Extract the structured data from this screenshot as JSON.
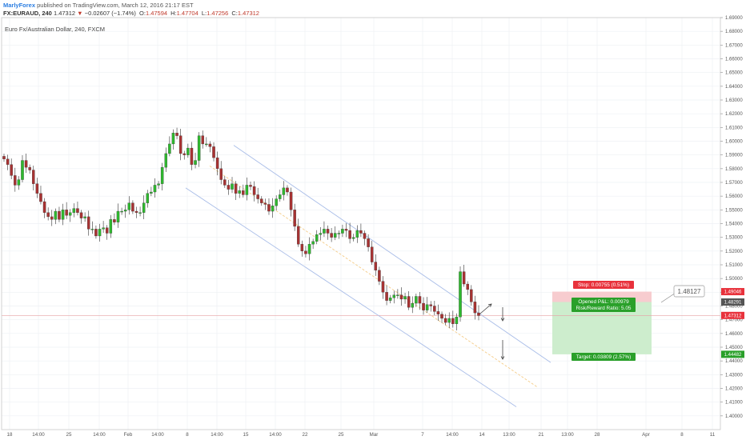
{
  "header": {
    "author": "MarlyForex",
    "published": "published on TradingView.com, March 12, 2016 21:17 EST",
    "ticker": "FX:EURAUD, 240",
    "last": "1.47312",
    "change_arrow": "▼",
    "change": "−0.02607 (−1.74%)",
    "o_label": "O:",
    "o_value": "1.47594",
    "h_label": "H:",
    "h_value": "1.47704",
    "l_label": "L:",
    "l_value": "1.47256",
    "c_label": "C:",
    "c_value": "1.47312",
    "symbol_desc": "Euro Fx/Australian Dollar, 240, FXCM"
  },
  "colors": {
    "up": "#2eb82e",
    "down": "#a83232",
    "channel": "#a9bde8",
    "midline": "#f5cc88",
    "stop_zone": "#f7cccf",
    "target_zone": "#cdedcd",
    "stop_label": "#e8323c",
    "target_label": "#2aa02a",
    "last_price": "#e8323c",
    "grid": "#eef0f4"
  },
  "chart_data": {
    "type": "candlestick",
    "symbol": "FX:EURAUD",
    "interval": "240",
    "ylim": [
      1.39,
      1.69
    ],
    "y_ticks": [
      1.4,
      1.41,
      1.42,
      1.43,
      1.44,
      1.45,
      1.46,
      1.47,
      1.48,
      1.49,
      1.5,
      1.51,
      1.52,
      1.53,
      1.54,
      1.55,
      1.56,
      1.57,
      1.58,
      1.59,
      1.6,
      1.61,
      1.62,
      1.63,
      1.64,
      1.65,
      1.66,
      1.67,
      1.68,
      1.69
    ],
    "x_ticks": [
      "18",
      "14:00",
      "25",
      "14:00",
      "Feb",
      "14:00",
      "8",
      "14:00",
      "15",
      "14:00",
      "22",
      "25",
      "Mar",
      "7",
      "14:00",
      "14",
      "13:00",
      "21",
      "13:00",
      "28",
      "Apr",
      "8",
      "11"
    ],
    "close_path": [
      1.587,
      1.583,
      1.575,
      1.568,
      1.572,
      1.586,
      1.581,
      1.579,
      1.569,
      1.562,
      1.556,
      1.548,
      1.545,
      1.543,
      1.549,
      1.543,
      1.55,
      1.546,
      1.548,
      1.551,
      1.548,
      1.544,
      1.545,
      1.536,
      1.536,
      1.531,
      1.536,
      1.537,
      1.533,
      1.543,
      1.541,
      1.549,
      1.549,
      1.55,
      1.555,
      1.549,
      1.548,
      1.548,
      1.555,
      1.562,
      1.563,
      1.568,
      1.569,
      1.581,
      1.591,
      1.598,
      1.606,
      1.604,
      1.591,
      1.59,
      1.595,
      1.583,
      1.586,
      1.604,
      1.598,
      1.598,
      1.596,
      1.588,
      1.58,
      1.572,
      1.568,
      1.565,
      1.569,
      1.562,
      1.564,
      1.561,
      1.568,
      1.567,
      1.561,
      1.558,
      1.555,
      1.554,
      1.549,
      1.553,
      1.558,
      1.561,
      1.566,
      1.563,
      1.55,
      1.538,
      1.525,
      1.52,
      1.518,
      1.525,
      1.527,
      1.532,
      1.533,
      1.536,
      1.533,
      1.53,
      1.533,
      1.533,
      1.536,
      1.535,
      1.529,
      1.53,
      1.535,
      1.533,
      1.529,
      1.523,
      1.512,
      1.506,
      1.498,
      1.49,
      1.484,
      1.486,
      1.488,
      1.488,
      1.485,
      1.487,
      1.479,
      1.482,
      1.487,
      1.482,
      1.477,
      1.481,
      1.48,
      1.476,
      1.474,
      1.471,
      1.468,
      1.471,
      1.467,
      1.472,
      1.505,
      1.496,
      1.492,
      1.483,
      1.475,
      1.473
    ],
    "trend_channel": {
      "upper": {
        "from": {
          "x": "Feb 10",
          "y": 1.597
        },
        "to": {
          "x": "Mar 15",
          "y": 1.474
        }
      },
      "middle": {
        "from": {
          "x": "Feb 10",
          "y": 1.582
        },
        "to": {
          "x": "Mar 15",
          "y": 1.449
        }
      },
      "lower": {
        "from": {
          "x": "Feb 10",
          "y": 1.566
        },
        "to": {
          "x": "Mar 15",
          "y": 1.424
        }
      }
    },
    "position": {
      "entry": 1.48291,
      "stop": 1.49046,
      "target": 1.44482,
      "last": 1.47312,
      "stop_label": "Stop: 0.00755 (0.51%)",
      "pnl_label": "Opened P&L: 0.00979",
      "rr_label": "Risk/Reward Ratio: 5.05",
      "target_label": "Target: 0.03809 (2.57%)"
    },
    "callout": "1.48127",
    "price_labels": {
      "stop": "1.49046",
      "entry": "1.48291",
      "last": "1.47312",
      "target": "1.44482"
    }
  }
}
